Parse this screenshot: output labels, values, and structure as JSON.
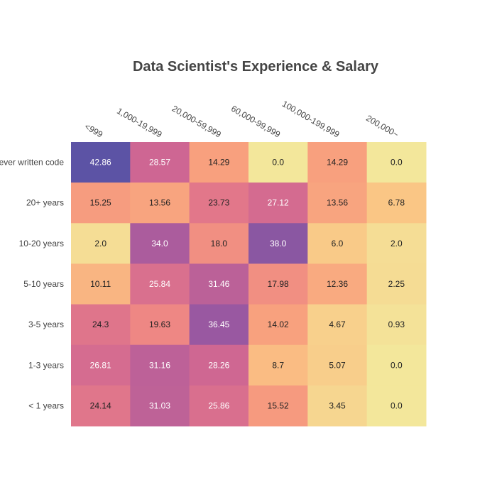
{
  "chart_data": {
    "type": "heatmap",
    "title": "Data Scientist's Experience & Salary",
    "xlabel": "",
    "ylabel": "",
    "x_categories": [
      "<999",
      "1,000-19,999",
      "20,000-59,999",
      "60,000-99,999",
      "100,000-199,999",
      "200,000~"
    ],
    "y_categories": [
      "I have never written code",
      "20+ years",
      "10-20 years",
      "5-10 years",
      "3-5 years",
      "1-3 years",
      "< 1 years"
    ],
    "values": [
      [
        42.86,
        28.57,
        14.29,
        0.0,
        14.29,
        0.0
      ],
      [
        15.25,
        13.56,
        23.73,
        27.12,
        13.56,
        6.78
      ],
      [
        2.0,
        34.0,
        18.0,
        38.0,
        6.0,
        2.0
      ],
      [
        10.11,
        25.84,
        31.46,
        17.98,
        12.36,
        2.25
      ],
      [
        24.3,
        19.63,
        36.45,
        14.02,
        4.67,
        0.93
      ],
      [
        26.81,
        31.16,
        28.26,
        8.7,
        5.07,
        0.0
      ],
      [
        24.14,
        31.03,
        25.86,
        15.52,
        3.45,
        0.0
      ]
    ],
    "value_labels": [
      [
        "42.86",
        "28.57",
        "14.29",
        "0.0",
        "14.29",
        "0.0"
      ],
      [
        "15.25",
        "13.56",
        "23.73",
        "27.12",
        "13.56",
        "6.78"
      ],
      [
        "2.0",
        "34.0",
        "18.0",
        "38.0",
        "6.0",
        "2.0"
      ],
      [
        "10.11",
        "25.84",
        "31.46",
        "17.98",
        "12.36",
        "2.25"
      ],
      [
        "24.3",
        "19.63",
        "36.45",
        "14.02",
        "4.67",
        "0.93"
      ],
      [
        "26.81",
        "31.16",
        "28.26",
        "8.7",
        "5.07",
        "0.0"
      ],
      [
        "24.14",
        "31.03",
        "25.86",
        "15.52",
        "3.45",
        "0.0"
      ]
    ],
    "colorscale": [
      "#f3e79b",
      "#fac484",
      "#f8a07e",
      "#eb7f86",
      "#ce6693",
      "#a059a0",
      "#5c53a5"
    ],
    "zrange": [
      0,
      42.86
    ],
    "legend": "none",
    "grid": false
  }
}
